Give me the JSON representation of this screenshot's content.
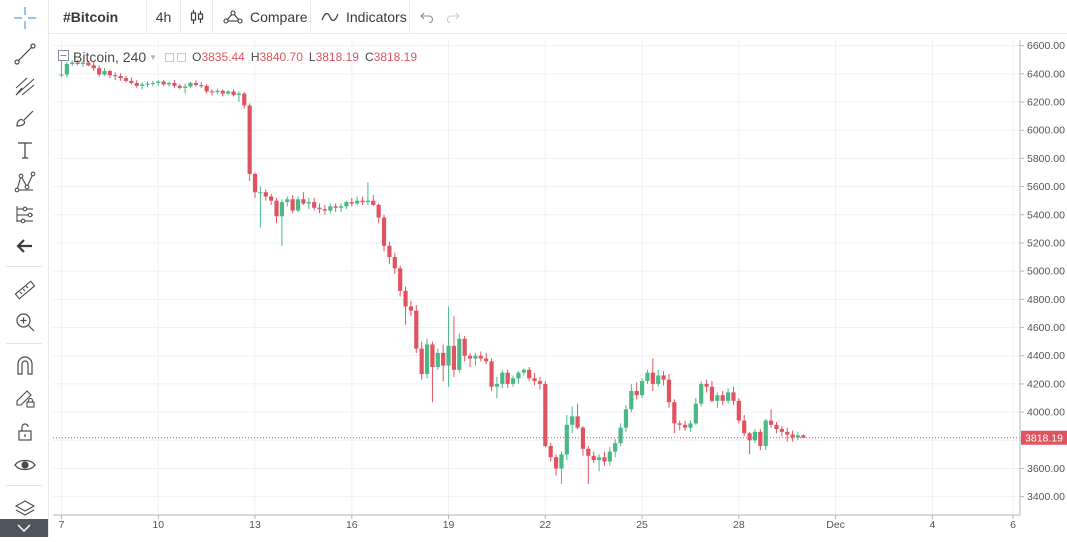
{
  "toolbar": {
    "symbol": "#Bitcoin",
    "interval": "4h",
    "compare_label": "Compare",
    "indicators_label": "Indicators"
  },
  "left_toolbar": {
    "icons": [
      "crosshair-icon",
      "trend-line-icon",
      "pitchfork-icon",
      "brush-icon",
      "text-icon",
      "pattern-icon",
      "prediction-icon",
      "back-arrow-icon",
      "ruler-icon",
      "zoom-in-icon",
      "magnet-icon",
      "lock-drawing-icon",
      "unlock-icon",
      "eye-icon",
      "layers-icon",
      "chevron-down-icon"
    ]
  },
  "legend": {
    "symbol_label": "Bitcoin, 240",
    "open_label": "O",
    "open": "3835.44",
    "high_label": "H",
    "high": "3840.70",
    "low_label": "L",
    "low": "3818.19",
    "close_label": "C",
    "close": "3818.19"
  },
  "colors": {
    "up": "#4bb888",
    "down": "#e0545f",
    "grid": "#eef1f5",
    "axis_text": "#555555",
    "price_line": "#e0545f"
  },
  "chart_data": {
    "type": "candlestick",
    "symbol": "Bitcoin",
    "interval": "240",
    "y_ticks": [
      "3400.00",
      "3600.00",
      "3800.00",
      "4000.00",
      "4200.00",
      "4400.00",
      "4600.00",
      "4800.00",
      "5000.00",
      "5200.00",
      "5400.00",
      "5600.00",
      "5800.00",
      "6000.00",
      "6200.00",
      "6400.00",
      "6600.00"
    ],
    "ylim": [
      3270,
      6640
    ],
    "x_ticks": [
      "7",
      "10",
      "13",
      "16",
      "19",
      "22",
      "25",
      "28",
      "Dec",
      "4",
      "6"
    ],
    "x_tick_index": [
      0,
      18,
      36,
      54,
      72,
      90,
      108,
      126,
      144,
      162,
      177
    ],
    "last_price": "3818.19",
    "grid": true,
    "candles": [
      [
        6395,
        6495,
        6375,
        6395
      ],
      [
        6395,
        6485,
        6375,
        6470
      ],
      [
        6470,
        6495,
        6455,
        6480
      ],
      [
        6480,
        6500,
        6460,
        6470
      ],
      [
        6470,
        6490,
        6450,
        6480
      ],
      [
        6480,
        6495,
        6455,
        6460
      ],
      [
        6460,
        6485,
        6420,
        6440
      ],
      [
        6440,
        6460,
        6380,
        6395
      ],
      [
        6395,
        6440,
        6385,
        6420
      ],
      [
        6420,
        6430,
        6370,
        6390
      ],
      [
        6390,
        6410,
        6355,
        6385
      ],
      [
        6385,
        6405,
        6350,
        6370
      ],
      [
        6370,
        6385,
        6340,
        6350
      ],
      [
        6350,
        6375,
        6325,
        6335
      ],
      [
        6335,
        6355,
        6300,
        6315
      ],
      [
        6315,
        6340,
        6290,
        6325
      ],
      [
        6325,
        6345,
        6305,
        6330
      ],
      [
        6330,
        6350,
        6310,
        6335
      ],
      [
        6335,
        6355,
        6315,
        6345
      ],
      [
        6345,
        6355,
        6315,
        6325
      ],
      [
        6325,
        6345,
        6310,
        6335
      ],
      [
        6335,
        6355,
        6300,
        6315
      ],
      [
        6315,
        6330,
        6290,
        6300
      ],
      [
        6300,
        6330,
        6260,
        6310
      ],
      [
        6310,
        6345,
        6300,
        6335
      ],
      [
        6335,
        6355,
        6310,
        6320
      ],
      [
        6320,
        6340,
        6300,
        6315
      ],
      [
        6315,
        6325,
        6260,
        6275
      ],
      [
        6275,
        6290,
        6245,
        6270
      ],
      [
        6270,
        6295,
        6255,
        6280
      ],
      [
        6280,
        6290,
        6240,
        6260
      ],
      [
        6260,
        6285,
        6250,
        6275
      ],
      [
        6275,
        6290,
        6240,
        6250
      ],
      [
        6250,
        6275,
        6200,
        6260
      ],
      [
        6260,
        6270,
        6155,
        6175
      ],
      [
        6175,
        6190,
        5640,
        5690
      ],
      [
        5690,
        5700,
        5520,
        5560
      ],
      [
        5560,
        5600,
        5310,
        5560
      ],
      [
        5560,
        5580,
        5500,
        5530
      ],
      [
        5530,
        5550,
        5470,
        5500
      ],
      [
        5500,
        5520,
        5340,
        5390
      ],
      [
        5390,
        5510,
        5180,
        5490
      ],
      [
        5490,
        5530,
        5460,
        5510
      ],
      [
        5510,
        5540,
        5410,
        5430
      ],
      [
        5430,
        5530,
        5420,
        5510
      ],
      [
        5510,
        5560,
        5470,
        5480
      ],
      [
        5480,
        5520,
        5440,
        5490
      ],
      [
        5490,
        5520,
        5430,
        5450
      ],
      [
        5450,
        5480,
        5410,
        5440
      ],
      [
        5440,
        5470,
        5400,
        5430
      ],
      [
        5430,
        5480,
        5410,
        5460
      ],
      [
        5460,
        5480,
        5420,
        5450
      ],
      [
        5450,
        5480,
        5420,
        5460
      ],
      [
        5460,
        5500,
        5440,
        5490
      ],
      [
        5490,
        5520,
        5460,
        5480
      ],
      [
        5480,
        5530,
        5470,
        5500
      ],
      [
        5500,
        5530,
        5470,
        5490
      ],
      [
        5490,
        5630,
        5470,
        5500
      ],
      [
        5500,
        5540,
        5460,
        5470
      ],
      [
        5470,
        5480,
        5340,
        5380
      ],
      [
        5380,
        5400,
        5140,
        5180
      ],
      [
        5180,
        5210,
        5050,
        5100
      ],
      [
        5100,
        5130,
        4980,
        5020
      ],
      [
        5020,
        5040,
        4820,
        4860
      ],
      [
        4860,
        4890,
        4620,
        4750
      ],
      [
        4750,
        4790,
        4680,
        4720
      ],
      [
        4720,
        4760,
        4420,
        4450
      ],
      [
        4450,
        4500,
        4230,
        4270
      ],
      [
        4270,
        4520,
        4240,
        4480
      ],
      [
        4480,
        4500,
        4070,
        4320
      ],
      [
        4320,
        4450,
        4300,
        4420
      ],
      [
        4420,
        4480,
        4220,
        4330
      ],
      [
        4330,
        4750,
        4180,
        4470
      ],
      [
        4470,
        4680,
        4250,
        4300
      ],
      [
        4300,
        4560,
        4280,
        4520
      ],
      [
        4520,
        4540,
        4360,
        4400
      ],
      [
        4400,
        4420,
        4320,
        4380
      ],
      [
        4380,
        4420,
        4330,
        4400
      ],
      [
        4400,
        4430,
        4360,
        4380
      ],
      [
        4380,
        4420,
        4340,
        4360
      ],
      [
        4360,
        4380,
        4150,
        4180
      ],
      [
        4180,
        4250,
        4100,
        4200
      ],
      [
        4200,
        4300,
        4170,
        4280
      ],
      [
        4280,
        4300,
        4170,
        4200
      ],
      [
        4200,
        4260,
        4180,
        4240
      ],
      [
        4240,
        4290,
        4200,
        4280
      ],
      [
        4280,
        4310,
        4260,
        4300
      ],
      [
        4300,
        4320,
        4220,
        4240
      ],
      [
        4240,
        4280,
        4190,
        4220
      ],
      [
        4220,
        4250,
        4160,
        4200
      ],
      [
        4200,
        4220,
        3750,
        3760
      ],
      [
        3760,
        3780,
        3650,
        3680
      ],
      [
        3680,
        3700,
        3550,
        3600
      ],
      [
        3600,
        3720,
        3490,
        3700
      ],
      [
        3700,
        3980,
        3660,
        3910
      ],
      [
        3910,
        4040,
        3850,
        3970
      ],
      [
        3970,
        4060,
        3880,
        3890
      ],
      [
        3890,
        3900,
        3690,
        3740
      ],
      [
        3740,
        3760,
        3490,
        3690
      ],
      [
        3690,
        3720,
        3640,
        3660
      ],
      [
        3660,
        3700,
        3580,
        3680
      ],
      [
        3680,
        3720,
        3620,
        3650
      ],
      [
        3650,
        3750,
        3620,
        3720
      ],
      [
        3720,
        3810,
        3680,
        3780
      ],
      [
        3780,
        3920,
        3760,
        3890
      ],
      [
        3890,
        4050,
        3860,
        4020
      ],
      [
        4020,
        4200,
        4000,
        4150
      ],
      [
        4150,
        4210,
        4090,
        4120
      ],
      [
        4120,
        4240,
        4100,
        4220
      ],
      [
        4220,
        4300,
        4200,
        4280
      ],
      [
        4280,
        4380,
        4150,
        4200
      ],
      [
        4200,
        4300,
        4180,
        4260
      ],
      [
        4260,
        4290,
        4190,
        4230
      ],
      [
        4230,
        4270,
        4030,
        4070
      ],
      [
        4070,
        4090,
        3850,
        3920
      ],
      [
        3920,
        3940,
        3870,
        3910
      ],
      [
        3910,
        3940,
        3870,
        3890
      ],
      [
        3890,
        3940,
        3860,
        3920
      ],
      [
        3920,
        4100,
        3910,
        4060
      ],
      [
        4060,
        4220,
        4040,
        4200
      ],
      [
        4200,
        4230,
        4140,
        4180
      ],
      [
        4180,
        4220,
        4070,
        4080
      ],
      [
        4080,
        4140,
        4030,
        4120
      ],
      [
        4120,
        4150,
        4050,
        4080
      ],
      [
        4080,
        4170,
        4060,
        4140
      ],
      [
        4140,
        4180,
        4050,
        4080
      ],
      [
        4080,
        4100,
        3920,
        3940
      ],
      [
        3940,
        3980,
        3830,
        3850
      ],
      [
        3850,
        3860,
        3700,
        3800
      ],
      [
        3800,
        3880,
        3780,
        3860
      ],
      [
        3860,
        3880,
        3730,
        3760
      ],
      [
        3760,
        3950,
        3730,
        3940
      ],
      [
        3940,
        4020,
        3890,
        3910
      ],
      [
        3910,
        3930,
        3850,
        3880
      ],
      [
        3880,
        3900,
        3830,
        3860
      ],
      [
        3860,
        3890,
        3790,
        3840
      ],
      [
        3840,
        3870,
        3790,
        3820
      ],
      [
        3820,
        3860,
        3800,
        3835
      ],
      [
        3835,
        3841,
        3818,
        3818
      ]
    ]
  }
}
